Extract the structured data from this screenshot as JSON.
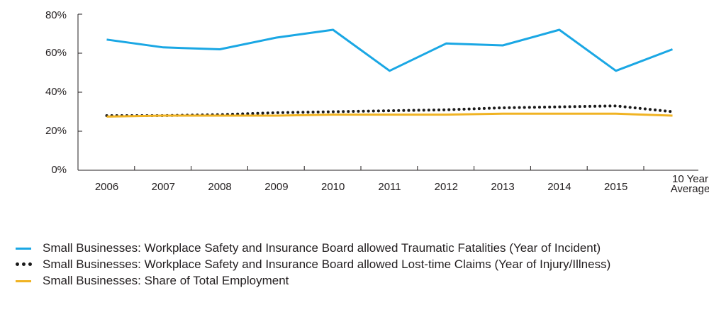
{
  "chart_data": {
    "type": "line",
    "title": "",
    "xlabel": "",
    "ylabel": "",
    "categories": [
      "2006",
      "2007",
      "2008",
      "2009",
      "2010",
      "2011",
      "2012",
      "2013",
      "2014",
      "2015",
      "10 Year Average"
    ],
    "category_label_lines": [
      [
        "2006"
      ],
      [
        "2007"
      ],
      [
        "2008"
      ],
      [
        "2009"
      ],
      [
        "2010"
      ],
      [
        "2011"
      ],
      [
        "2012"
      ],
      [
        "2013"
      ],
      [
        "2014"
      ],
      [
        "2015"
      ],
      [
        "10 Year",
        "Average"
      ]
    ],
    "y_ticks": [
      "80%",
      "60%",
      "40%",
      "20%",
      "0%"
    ],
    "ylim": [
      0,
      80
    ],
    "grid": false,
    "legend_position": "bottom",
    "series": [
      {
        "name": "Small Businesses: Workplace Safety and Insurance Board allowed Traumatic Fatalities (Year of Incident)",
        "style": "solid",
        "color": "#1aa7e4",
        "values": [
          67,
          63,
          62,
          68,
          72,
          51,
          65,
          64,
          72,
          51,
          62
        ]
      },
      {
        "name": "Small Businesses: Workplace Safety and Insurance Board allowed Lost-time Claims (Year of Injury/Illness)",
        "style": "dotted",
        "color": "#1a1a1a",
        "values": [
          28,
          28,
          28.5,
          29.5,
          30,
          30.5,
          31,
          32,
          32.5,
          33,
          30
        ]
      },
      {
        "name": "Small Businesses: Share of Total Employment",
        "style": "solid",
        "color": "#f0b323",
        "values": [
          27.5,
          28,
          28,
          28,
          28.5,
          28.5,
          28.5,
          29,
          29,
          29,
          28
        ]
      }
    ]
  }
}
